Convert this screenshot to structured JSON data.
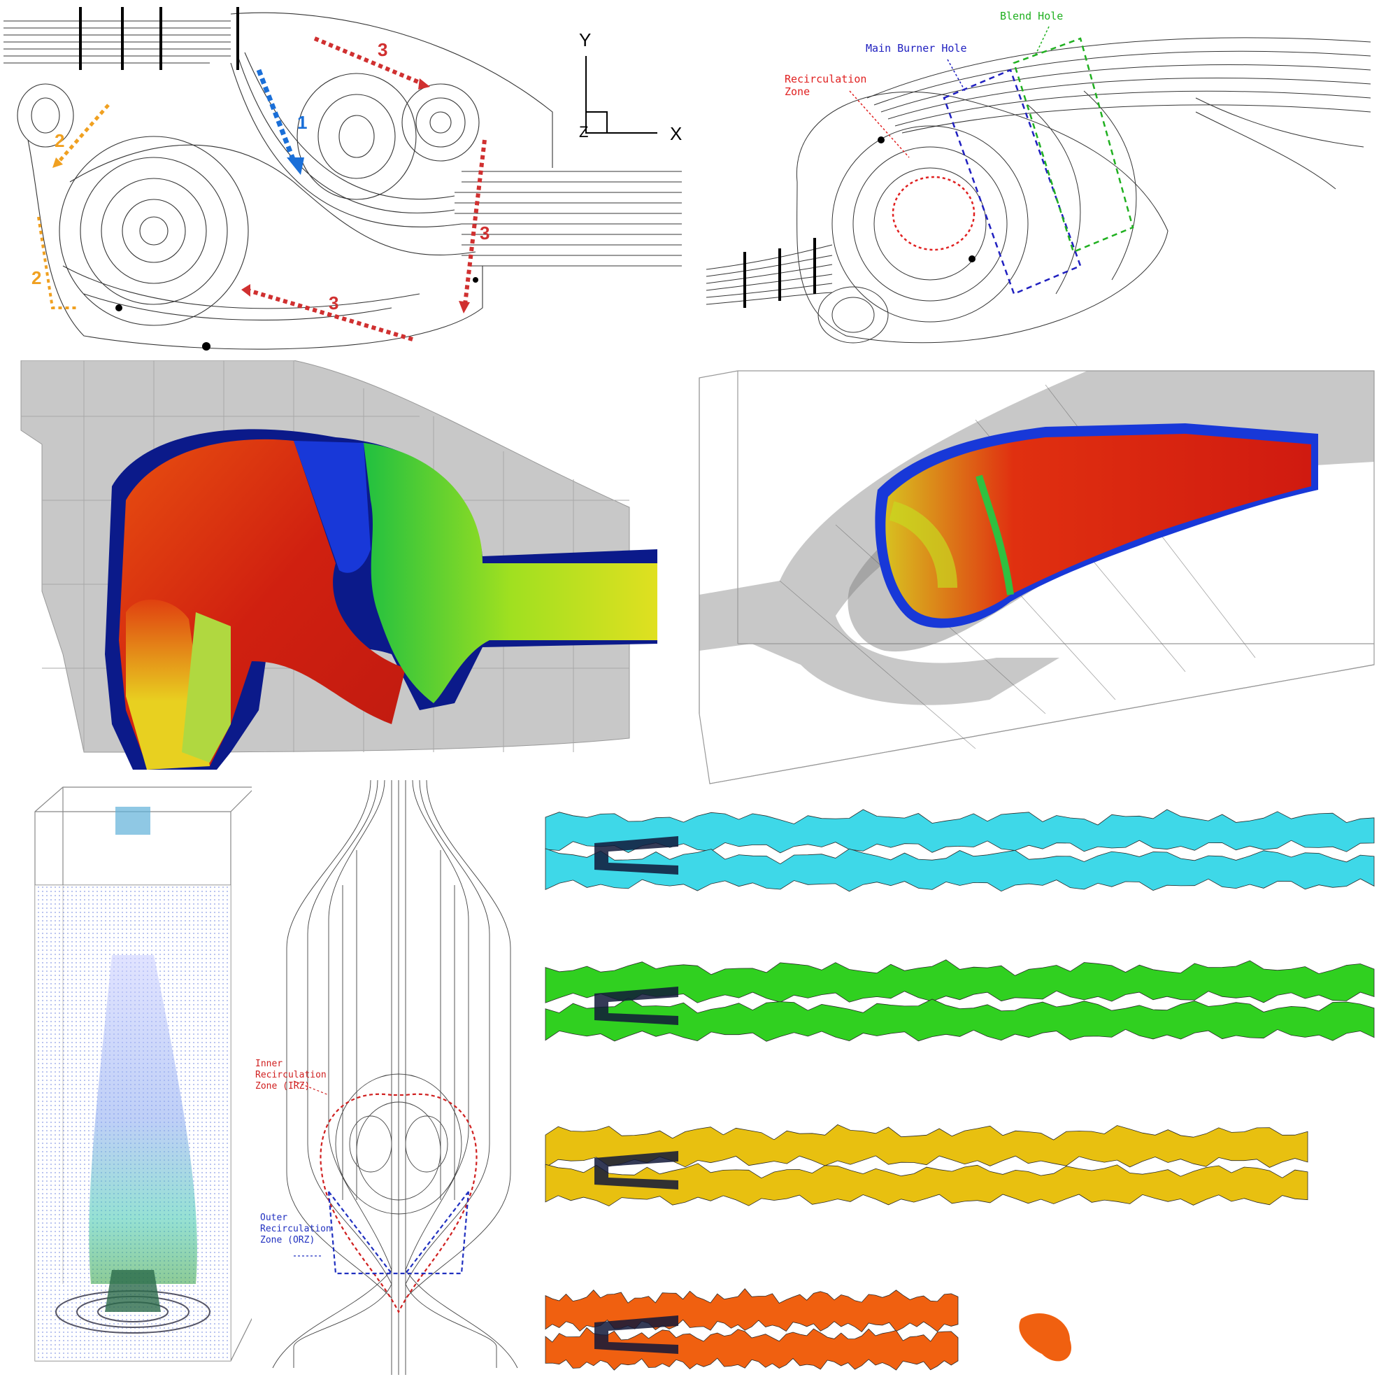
{
  "top_left": {
    "axis_labels": {
      "y": "Y",
      "x": "X",
      "z": "Z"
    },
    "arrow_numbers": {
      "n1": "1",
      "n2a": "2",
      "n2b": "2",
      "n3a": "3",
      "n3b": "3",
      "n3c": "3"
    },
    "colors": {
      "blue_arrow": "#1a6fd8",
      "orange_arrow": "#f0a020",
      "red_arrow": "#d03030"
    }
  },
  "top_right": {
    "labels": {
      "recirculation": "Recirculation\nZone",
      "main_burner_hole": "Main Burner Hole",
      "blend_hole": "Blend Hole"
    },
    "colors": {
      "recirculation": "#e02020",
      "main_burner_hole": "#2020c0",
      "blend_hole": "#20b020"
    }
  },
  "bottom_middle": {
    "labels": {
      "irz": "Inner\nRecirculation\nZone (IRZ)",
      "orz": "Outer\nRecirculation\nZone (ORZ)"
    },
    "colors": {
      "irz": "#d02020",
      "orz": "#2030c0"
    }
  },
  "isosurfaces": {
    "colors": [
      "#3ed8e8",
      "#30d020",
      "#e8c010",
      "#f06010"
    ]
  }
}
